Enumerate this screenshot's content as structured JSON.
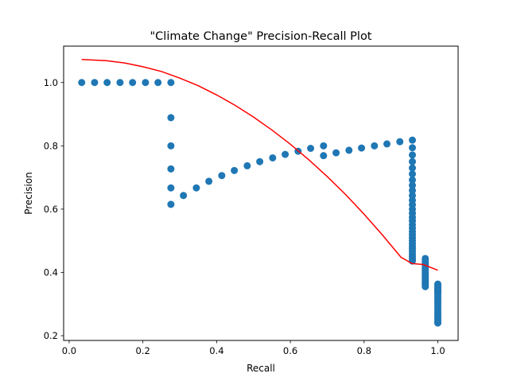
{
  "chart_data": {
    "type": "scatter",
    "title": "\"Climate Change\" Precision-Recall Plot",
    "xlabel": "Recall",
    "ylabel": "Precision",
    "xlim": [
      -0.015,
      1.055
    ],
    "ylim": [
      0.185,
      1.115
    ],
    "xticks": [
      "0.0",
      "0.2",
      "0.4",
      "0.6",
      "0.8",
      "1.0"
    ],
    "yticks": [
      "0.2",
      "0.4",
      "0.6",
      "0.8",
      "1.0"
    ],
    "grid": false,
    "legend": "none",
    "colors": {
      "points": "#1f77b4",
      "curve": "#ff0000"
    },
    "series": [
      {
        "kind": "scatter",
        "points": [
          [
            0.034,
            1.0
          ],
          [
            0.069,
            1.0
          ],
          [
            0.103,
            1.0
          ],
          [
            0.138,
            1.0
          ],
          [
            0.172,
            1.0
          ],
          [
            0.207,
            1.0
          ],
          [
            0.241,
            1.0
          ],
          [
            0.276,
            1.0
          ],
          [
            0.276,
            0.889
          ],
          [
            0.276,
            0.8
          ],
          [
            0.276,
            0.727
          ],
          [
            0.276,
            0.667
          ],
          [
            0.276,
            0.615
          ],
          [
            0.31,
            0.643
          ],
          [
            0.345,
            0.667
          ],
          [
            0.379,
            0.688
          ],
          [
            0.414,
            0.706
          ],
          [
            0.448,
            0.722
          ],
          [
            0.483,
            0.737
          ],
          [
            0.517,
            0.75
          ],
          [
            0.552,
            0.762
          ],
          [
            0.586,
            0.773
          ],
          [
            0.621,
            0.783
          ],
          [
            0.655,
            0.792
          ],
          [
            0.69,
            0.8
          ],
          [
            0.69,
            0.769
          ],
          [
            0.724,
            0.778
          ],
          [
            0.759,
            0.786
          ],
          [
            0.793,
            0.793
          ],
          [
            0.828,
            0.8
          ],
          [
            0.862,
            0.806
          ],
          [
            0.897,
            0.813
          ],
          [
            0.931,
            0.818
          ],
          [
            0.931,
            0.794
          ],
          [
            0.931,
            0.771
          ],
          [
            0.931,
            0.75
          ],
          [
            0.931,
            0.73
          ],
          [
            0.931,
            0.711
          ],
          [
            0.931,
            0.692
          ],
          [
            0.931,
            0.675
          ],
          [
            0.931,
            0.659
          ],
          [
            0.931,
            0.643
          ],
          [
            0.931,
            0.628
          ],
          [
            0.931,
            0.614
          ],
          [
            0.931,
            0.6
          ],
          [
            0.931,
            0.587
          ],
          [
            0.931,
            0.574
          ],
          [
            0.931,
            0.563
          ],
          [
            0.931,
            0.551
          ],
          [
            0.931,
            0.54
          ],
          [
            0.931,
            0.529
          ],
          [
            0.931,
            0.519
          ],
          [
            0.931,
            0.509
          ],
          [
            0.931,
            0.5
          ],
          [
            0.931,
            0.491
          ],
          [
            0.931,
            0.482
          ],
          [
            0.931,
            0.474
          ],
          [
            0.931,
            0.466
          ],
          [
            0.931,
            0.458
          ],
          [
            0.931,
            0.45
          ],
          [
            0.931,
            0.443
          ],
          [
            0.931,
            0.436
          ],
          [
            0.966,
            0.444
          ],
          [
            0.966,
            0.437
          ],
          [
            0.966,
            0.431
          ],
          [
            0.966,
            0.424
          ],
          [
            0.966,
            0.418
          ],
          [
            0.966,
            0.412
          ],
          [
            0.966,
            0.406
          ],
          [
            0.966,
            0.4
          ],
          [
            0.966,
            0.394
          ],
          [
            0.966,
            0.389
          ],
          [
            0.966,
            0.384
          ],
          [
            0.966,
            0.378
          ],
          [
            0.966,
            0.373
          ],
          [
            0.966,
            0.368
          ],
          [
            0.966,
            0.364
          ],
          [
            0.966,
            0.359
          ],
          [
            0.966,
            0.355
          ],
          [
            1.0,
            0.363
          ],
          [
            1.0,
            0.358
          ],
          [
            1.0,
            0.353
          ],
          [
            1.0,
            0.349
          ],
          [
            1.0,
            0.345
          ],
          [
            1.0,
            0.341
          ],
          [
            1.0,
            0.337
          ],
          [
            1.0,
            0.333
          ],
          [
            1.0,
            0.326
          ],
          [
            1.0,
            0.319
          ],
          [
            1.0,
            0.312
          ],
          [
            1.0,
            0.305
          ],
          [
            1.0,
            0.298
          ],
          [
            1.0,
            0.29
          ],
          [
            1.0,
            0.282
          ],
          [
            1.0,
            0.274
          ],
          [
            1.0,
            0.267
          ],
          [
            1.0,
            0.26
          ],
          [
            1.0,
            0.253
          ],
          [
            1.0,
            0.246
          ],
          [
            1.0,
            0.24
          ]
        ]
      },
      {
        "kind": "line",
        "points": [
          [
            0.034,
            1.073
          ],
          [
            0.1,
            1.069
          ],
          [
            0.15,
            1.062
          ],
          [
            0.2,
            1.05
          ],
          [
            0.25,
            1.035
          ],
          [
            0.3,
            1.014
          ],
          [
            0.35,
            0.99
          ],
          [
            0.4,
            0.961
          ],
          [
            0.45,
            0.928
          ],
          [
            0.5,
            0.891
          ],
          [
            0.55,
            0.85
          ],
          [
            0.6,
            0.805
          ],
          [
            0.65,
            0.756
          ],
          [
            0.7,
            0.703
          ],
          [
            0.75,
            0.646
          ],
          [
            0.8,
            0.584
          ],
          [
            0.85,
            0.518
          ],
          [
            0.9,
            0.448
          ],
          [
            0.93,
            0.428
          ],
          [
            0.96,
            0.425
          ],
          [
            1.0,
            0.407
          ]
        ]
      }
    ]
  }
}
